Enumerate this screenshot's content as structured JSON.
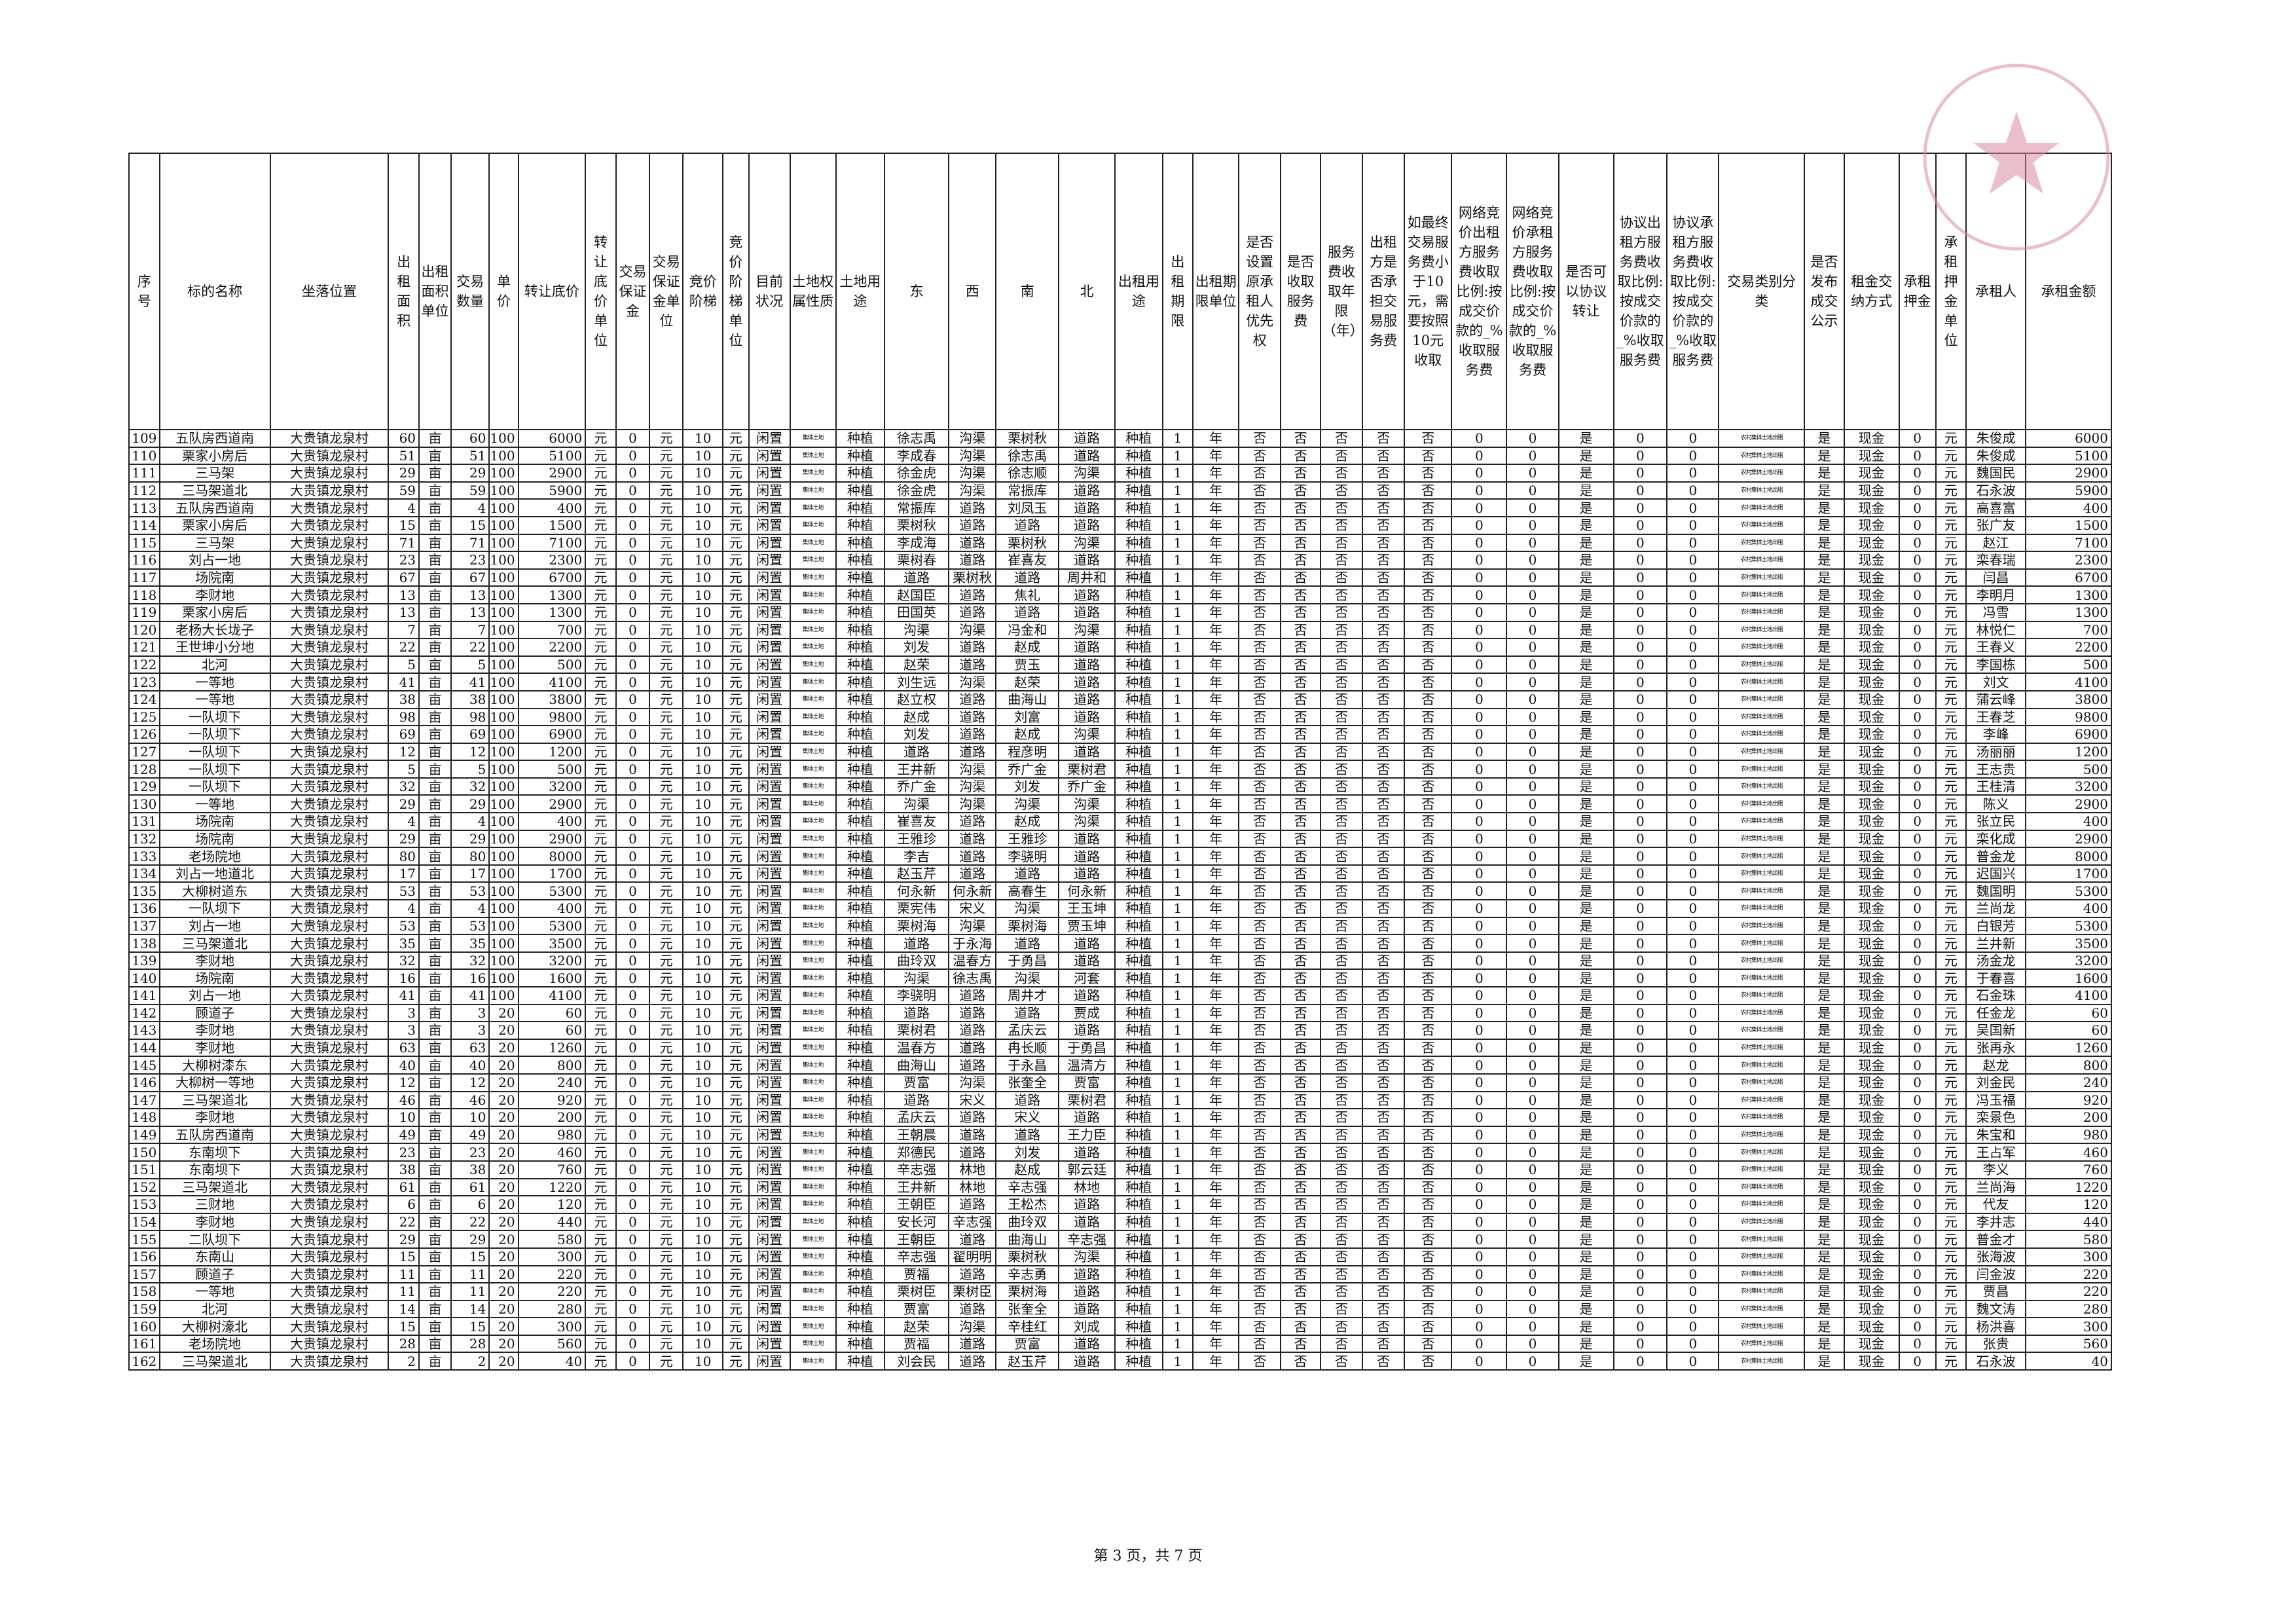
{
  "headers": [
    "序号",
    "标的名称",
    "坐落位置",
    "出租面积",
    "出租面积单位",
    "交易数量",
    "单价",
    "转让底价",
    "转让底价单位",
    "交易保证金",
    "交易保证金单位",
    "竞价阶梯",
    "竞价阶梯单位",
    "目前状况",
    "土地权属性质",
    "土地用途",
    "东",
    "西",
    "南",
    "北",
    "出租用途",
    "出租期限",
    "出租期限单位",
    "是否设置原承租人优先权",
    "是否收取服务费",
    "服务费收取年限（年）",
    "出租方是否承担交易服务费",
    "如最终交易服务费小于10元，需要按照10元收取",
    "网络竞价出租方服务费收取比例:按成交价款的_%收取服务费",
    "网络竞价承租方服务费收取比例:按成交价款的_%收取服务费",
    "是否可以协议转让",
    "协议出租方服务费收取比例:按成交价款的_%收取服务费",
    "协议承租方服务费收取比例:按成交价款的_%收取服务费",
    "交易类别分类",
    "是否发布成交公示",
    "租金交纳方式",
    "承租押金",
    "承租押金单位",
    "承租人",
    "承租金额"
  ],
  "constants": {
    "location": "大贵镇龙泉村",
    "area_unit": "亩",
    "yuan": "元",
    "zero": "0",
    "ten": "10",
    "status": "闲置",
    "ownership": "集体土地",
    "use": "种植",
    "term": "1",
    "term_unit": "年",
    "no": "否",
    "yes": "是",
    "category": "农村集体土地出租",
    "payment": "现金"
  },
  "rows": [
    [
      "109",
      "五队房西道南",
      "60",
      "60",
      "100",
      "6000",
      "徐志禹",
      "沟渠",
      "栗树秋",
      "道路",
      "朱俊成"
    ],
    [
      "110",
      "栗家小房后",
      "51",
      "51",
      "100",
      "5100",
      "李成春",
      "沟渠",
      "徐志禹",
      "道路",
      "朱俊成"
    ],
    [
      "111",
      "三马架",
      "29",
      "29",
      "100",
      "2900",
      "徐金虎",
      "沟渠",
      "徐志顺",
      "沟渠",
      "魏国民"
    ],
    [
      "112",
      "三马架道北",
      "59",
      "59",
      "100",
      "5900",
      "徐金虎",
      "沟渠",
      "常振库",
      "道路",
      "石永波"
    ],
    [
      "113",
      "五队房西道南",
      "4",
      "4",
      "100",
      "400",
      "常振库",
      "道路",
      "刘凤玉",
      "道路",
      "高喜富"
    ],
    [
      "114",
      "栗家小房后",
      "15",
      "15",
      "100",
      "1500",
      "栗树秋",
      "道路",
      "道路",
      "道路",
      "张广友"
    ],
    [
      "115",
      "三马架",
      "71",
      "71",
      "100",
      "7100",
      "李成海",
      "道路",
      "栗树秋",
      "沟渠",
      "赵江"
    ],
    [
      "116",
      "刘占一地",
      "23",
      "23",
      "100",
      "2300",
      "栗树春",
      "道路",
      "崔喜友",
      "道路",
      "栾春瑞"
    ],
    [
      "117",
      "场院南",
      "67",
      "67",
      "100",
      "6700",
      "道路",
      "栗树秋",
      "道路",
      "周井和",
      "闫昌"
    ],
    [
      "118",
      "李财地",
      "13",
      "13",
      "100",
      "1300",
      "赵国臣",
      "道路",
      "焦礼",
      "道路",
      "李明月"
    ],
    [
      "119",
      "栗家小房后",
      "13",
      "13",
      "100",
      "1300",
      "田国英",
      "道路",
      "道路",
      "道路",
      "冯雪"
    ],
    [
      "120",
      "老杨大长垅子",
      "7",
      "7",
      "100",
      "700",
      "沟渠",
      "沟渠",
      "冯金和",
      "沟渠",
      "林悦仁"
    ],
    [
      "121",
      "王世坤小分地",
      "22",
      "22",
      "100",
      "2200",
      "刘发",
      "道路",
      "赵成",
      "道路",
      "王春义"
    ],
    [
      "122",
      "北河",
      "5",
      "5",
      "100",
      "500",
      "赵荣",
      "道路",
      "贾玉",
      "道路",
      "李国栋"
    ],
    [
      "123",
      "一等地",
      "41",
      "41",
      "100",
      "4100",
      "刘生远",
      "沟渠",
      "赵荣",
      "道路",
      "刘文"
    ],
    [
      "124",
      "一等地",
      "38",
      "38",
      "100",
      "3800",
      "赵立权",
      "道路",
      "曲海山",
      "道路",
      "蒲云峰"
    ],
    [
      "125",
      "一队坝下",
      "98",
      "98",
      "100",
      "9800",
      "赵成",
      "道路",
      "刘富",
      "道路",
      "王春芝"
    ],
    [
      "126",
      "一队坝下",
      "69",
      "69",
      "100",
      "6900",
      "刘发",
      "道路",
      "赵成",
      "沟渠",
      "李峰"
    ],
    [
      "127",
      "一队坝下",
      "12",
      "12",
      "100",
      "1200",
      "道路",
      "道路",
      "程彦明",
      "道路",
      "汤丽丽"
    ],
    [
      "128",
      "一队坝下",
      "5",
      "5",
      "100",
      "500",
      "王井新",
      "沟渠",
      "乔广金",
      "栗树君",
      "王志贵"
    ],
    [
      "129",
      "一队坝下",
      "32",
      "32",
      "100",
      "3200",
      "乔广金",
      "沟渠",
      "刘发",
      "乔广金",
      "王桂清"
    ],
    [
      "130",
      "一等地",
      "29",
      "29",
      "100",
      "2900",
      "沟渠",
      "沟渠",
      "沟渠",
      "沟渠",
      "陈义"
    ],
    [
      "131",
      "场院南",
      "4",
      "4",
      "100",
      "400",
      "崔喜友",
      "道路",
      "赵成",
      "沟渠",
      "张立民"
    ],
    [
      "132",
      "场院南",
      "29",
      "29",
      "100",
      "2900",
      "王雅珍",
      "道路",
      "王雅珍",
      "道路",
      "栾化成"
    ],
    [
      "133",
      "老场院地",
      "80",
      "80",
      "100",
      "8000",
      "李吉",
      "道路",
      "李骁明",
      "道路",
      "普金龙"
    ],
    [
      "134",
      "刘占一地道北",
      "17",
      "17",
      "100",
      "1700",
      "赵玉芹",
      "道路",
      "道路",
      "道路",
      "迟国兴"
    ],
    [
      "135",
      "大柳树道东",
      "53",
      "53",
      "100",
      "5300",
      "何永新",
      "何永新",
      "高春生",
      "何永新",
      "魏国明"
    ],
    [
      "136",
      "一队坝下",
      "4",
      "4",
      "100",
      "400",
      "栗宪伟",
      "宋义",
      "沟渠",
      "王玉坤",
      "兰尚龙"
    ],
    [
      "137",
      "刘占一地",
      "53",
      "53",
      "100",
      "5300",
      "栗树海",
      "沟渠",
      "栗树海",
      "贾玉坤",
      "白银芳"
    ],
    [
      "138",
      "三马架道北",
      "35",
      "35",
      "100",
      "3500",
      "道路",
      "于永海",
      "道路",
      "道路",
      "兰井新"
    ],
    [
      "139",
      "李财地",
      "32",
      "32",
      "100",
      "3200",
      "曲玲双",
      "温春方",
      "于勇昌",
      "道路",
      "汤金龙"
    ],
    [
      "140",
      "场院南",
      "16",
      "16",
      "100",
      "1600",
      "沟渠",
      "徐志禹",
      "沟渠",
      "河套",
      "于春喜"
    ],
    [
      "141",
      "刘占一地",
      "41",
      "41",
      "100",
      "4100",
      "李骁明",
      "道路",
      "周井才",
      "道路",
      "石金珠"
    ],
    [
      "142",
      "顾道子",
      "3",
      "3",
      "20",
      "60",
      "道路",
      "道路",
      "道路",
      "贾成",
      "任金龙"
    ],
    [
      "143",
      "李财地",
      "3",
      "3",
      "20",
      "60",
      "栗树君",
      "道路",
      "孟庆云",
      "道路",
      "吴国新"
    ],
    [
      "144",
      "李财地",
      "63",
      "63",
      "20",
      "1260",
      "温春方",
      "道路",
      "冉长顺",
      "于勇昌",
      "张再永"
    ],
    [
      "145",
      "大柳树漆东",
      "40",
      "40",
      "20",
      "800",
      "曲海山",
      "道路",
      "于永昌",
      "温清方",
      "赵龙"
    ],
    [
      "146",
      "大柳树一等地",
      "12",
      "12",
      "20",
      "240",
      "贾富",
      "沟渠",
      "张奎全",
      "贾富",
      "刘金民"
    ],
    [
      "147",
      "三马架道北",
      "46",
      "46",
      "20",
      "920",
      "道路",
      "宋义",
      "道路",
      "栗树君",
      "冯玉福"
    ],
    [
      "148",
      "李财地",
      "10",
      "10",
      "20",
      "200",
      "孟庆云",
      "道路",
      "宋义",
      "道路",
      "栾景色"
    ],
    [
      "149",
      "五队房西道南",
      "49",
      "49",
      "20",
      "980",
      "王朝晨",
      "道路",
      "道路",
      "王力臣",
      "朱宝和"
    ],
    [
      "150",
      "东南坝下",
      "23",
      "23",
      "20",
      "460",
      "郑德民",
      "道路",
      "刘发",
      "道路",
      "王占军"
    ],
    [
      "151",
      "东南坝下",
      "38",
      "38",
      "20",
      "760",
      "辛志强",
      "林地",
      "赵成",
      "郭云廷",
      "李义"
    ],
    [
      "152",
      "三马架道北",
      "61",
      "61",
      "20",
      "1220",
      "王井新",
      "林地",
      "辛志强",
      "林地",
      "兰尚海"
    ],
    [
      "153",
      "三财地",
      "6",
      "6",
      "20",
      "120",
      "王朝臣",
      "道路",
      "王松杰",
      "道路",
      "代友"
    ],
    [
      "154",
      "李财地",
      "22",
      "22",
      "20",
      "440",
      "安长河",
      "辛志强",
      "曲玲双",
      "道路",
      "李井志"
    ],
    [
      "155",
      "二队坝下",
      "29",
      "29",
      "20",
      "580",
      "王朝臣",
      "道路",
      "曲海山",
      "辛志强",
      "普金才"
    ],
    [
      "156",
      "东南山",
      "15",
      "15",
      "20",
      "300",
      "辛志强",
      "翟明明",
      "栗树秋",
      "沟渠",
      "张海波"
    ],
    [
      "157",
      "顾道子",
      "11",
      "11",
      "20",
      "220",
      "贾福",
      "道路",
      "辛志勇",
      "道路",
      "闫金波"
    ],
    [
      "158",
      "一等地",
      "11",
      "11",
      "20",
      "220",
      "栗树臣",
      "栗树臣",
      "栗树海",
      "道路",
      "贾昌"
    ],
    [
      "159",
      "北河",
      "14",
      "14",
      "20",
      "280",
      "贾富",
      "道路",
      "张奎全",
      "道路",
      "魏文涛"
    ],
    [
      "160",
      "大柳树濠北",
      "15",
      "15",
      "20",
      "300",
      "赵荣",
      "沟渠",
      "辛桂红",
      "刘成",
      "杨洪喜"
    ],
    [
      "161",
      "老场院地",
      "28",
      "28",
      "20",
      "560",
      "贾福",
      "道路",
      "贾富",
      "道路",
      "张贵"
    ],
    [
      "162",
      "三马架道北",
      "2",
      "2",
      "20",
      "40",
      "刘会民",
      "道路",
      "赵玉芹",
      "道路",
      "石永波"
    ]
  ],
  "footer": "第 3 页，共 7 页",
  "seal_color": "#d98aa0",
  "seal_icon": "seal-star"
}
